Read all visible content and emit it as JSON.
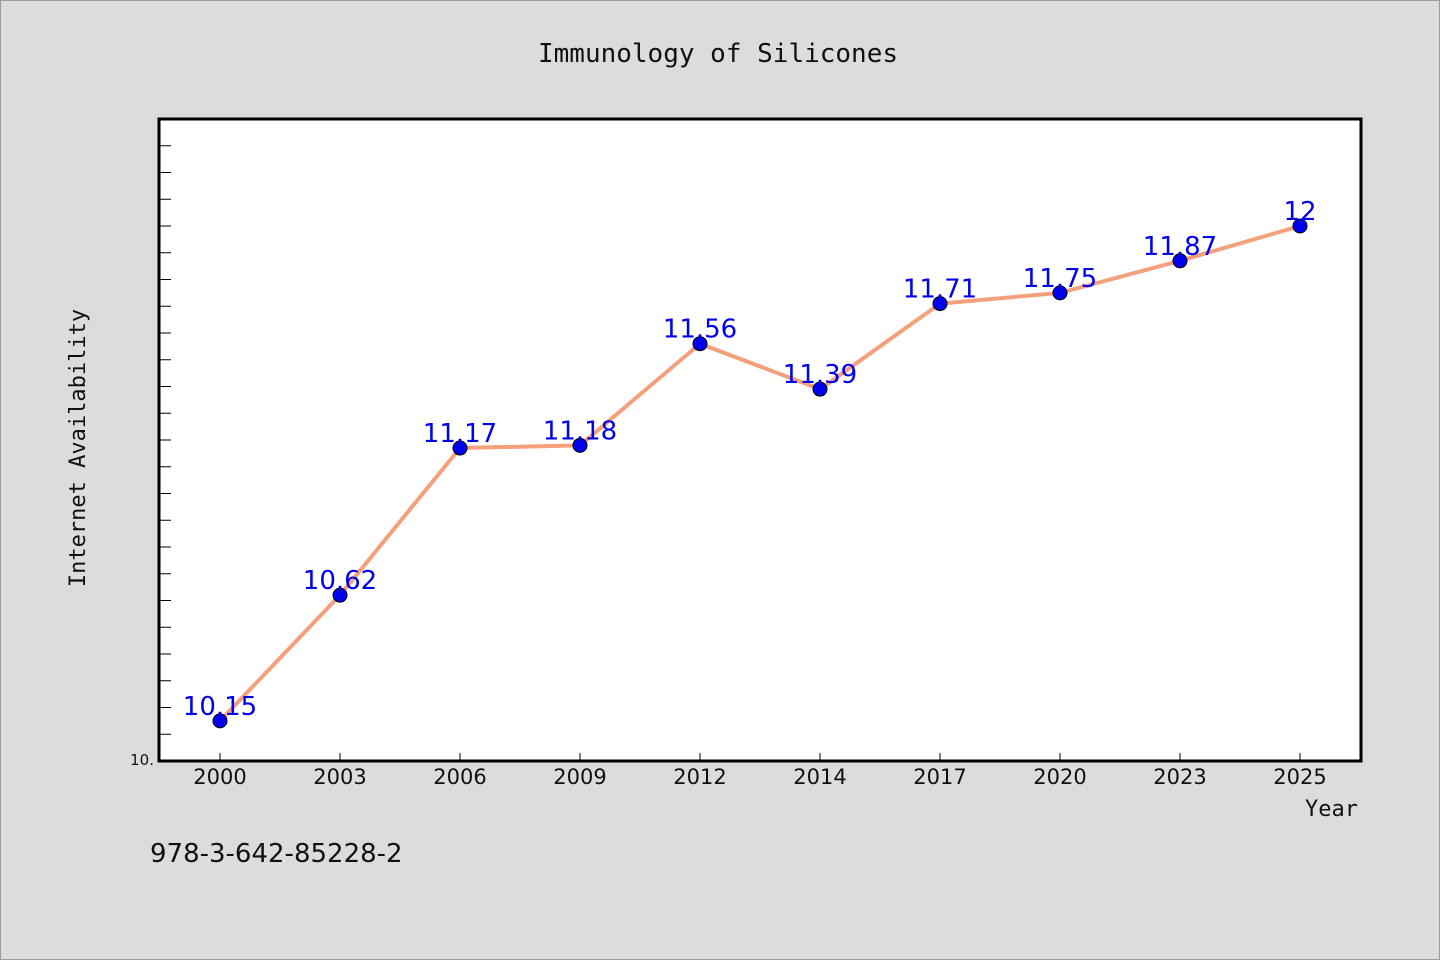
{
  "chart_data": {
    "type": "line",
    "title": "Immunology of Silicones",
    "xlabel": "Year",
    "ylabel": "Internet Availability",
    "categories": [
      "2000",
      "2003",
      "2006",
      "2009",
      "2012",
      "2014",
      "2017",
      "2020",
      "2023",
      "2025"
    ],
    "series": [
      {
        "values": [
          10.15,
          10.62,
          11.17,
          11.18,
          11.56,
          11.39,
          11.71,
          11.75,
          11.87,
          12
        ]
      }
    ],
    "data_labels": [
      "10.15",
      "10.62",
      "11.17",
      "11.18",
      "11.56",
      "11.39",
      "11.71",
      "11.75",
      "11.87",
      "12"
    ],
    "ylim": [
      10,
      12.4
    ],
    "y_tick_label": "10.",
    "grid": false,
    "legend": "none",
    "line_color": "#f4a07c",
    "marker_color": "#0000ee",
    "label_color": "#0000ee"
  },
  "footer": {
    "identifier": "978-3-642-85228-2"
  }
}
